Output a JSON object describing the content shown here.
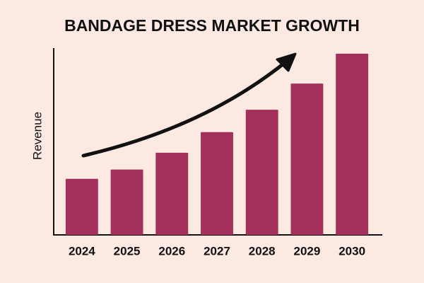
{
  "chart_data": {
    "type": "bar",
    "title": "BANDAGE DRESS MARKET GROWTH",
    "y_label": "Revenue",
    "categories": [
      "2024",
      "2025",
      "2026",
      "2027",
      "2028",
      "2029",
      "2030"
    ],
    "values": [
      30,
      35,
      44,
      55,
      67,
      81,
      97
    ],
    "color": "#a3305a",
    "ylim": [
      0,
      100
    ],
    "grid": false
  }
}
